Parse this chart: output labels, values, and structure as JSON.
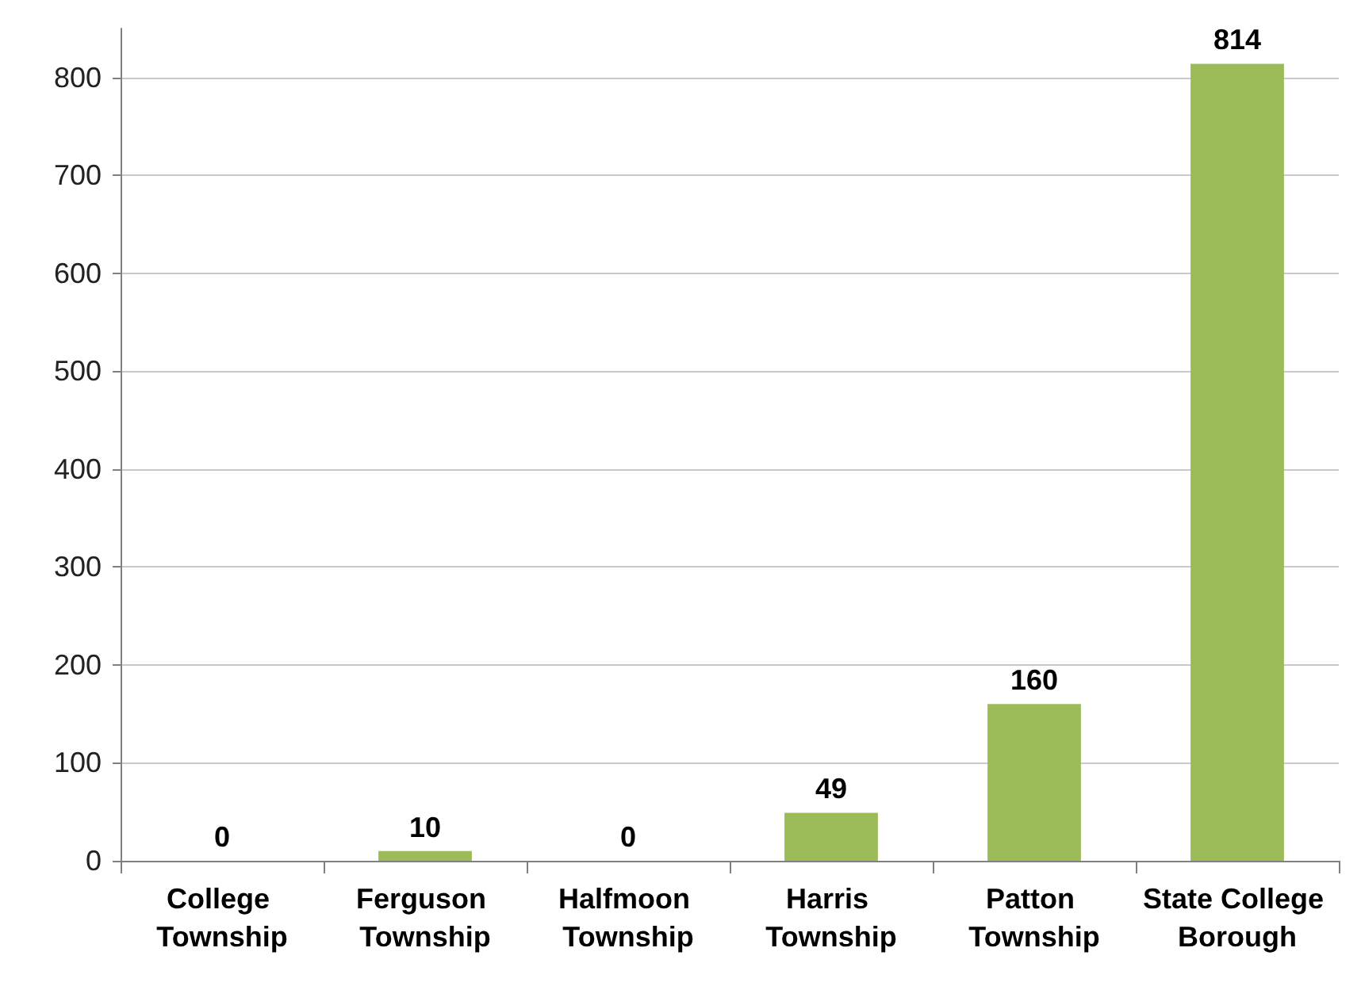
{
  "chart_data": {
    "type": "bar",
    "categories": [
      "College Township",
      "Ferguson Township",
      "Halfmoon Township",
      "Harris Township",
      "Patton Township",
      "State College Borough"
    ],
    "values": [
      0,
      10,
      0,
      49,
      160,
      814
    ],
    "color": "#9bbb59",
    "ylim": [
      0,
      850
    ],
    "yticks": [
      0,
      100,
      200,
      300,
      400,
      500,
      600,
      700,
      800
    ],
    "grid": "y",
    "data_labels": true
  }
}
